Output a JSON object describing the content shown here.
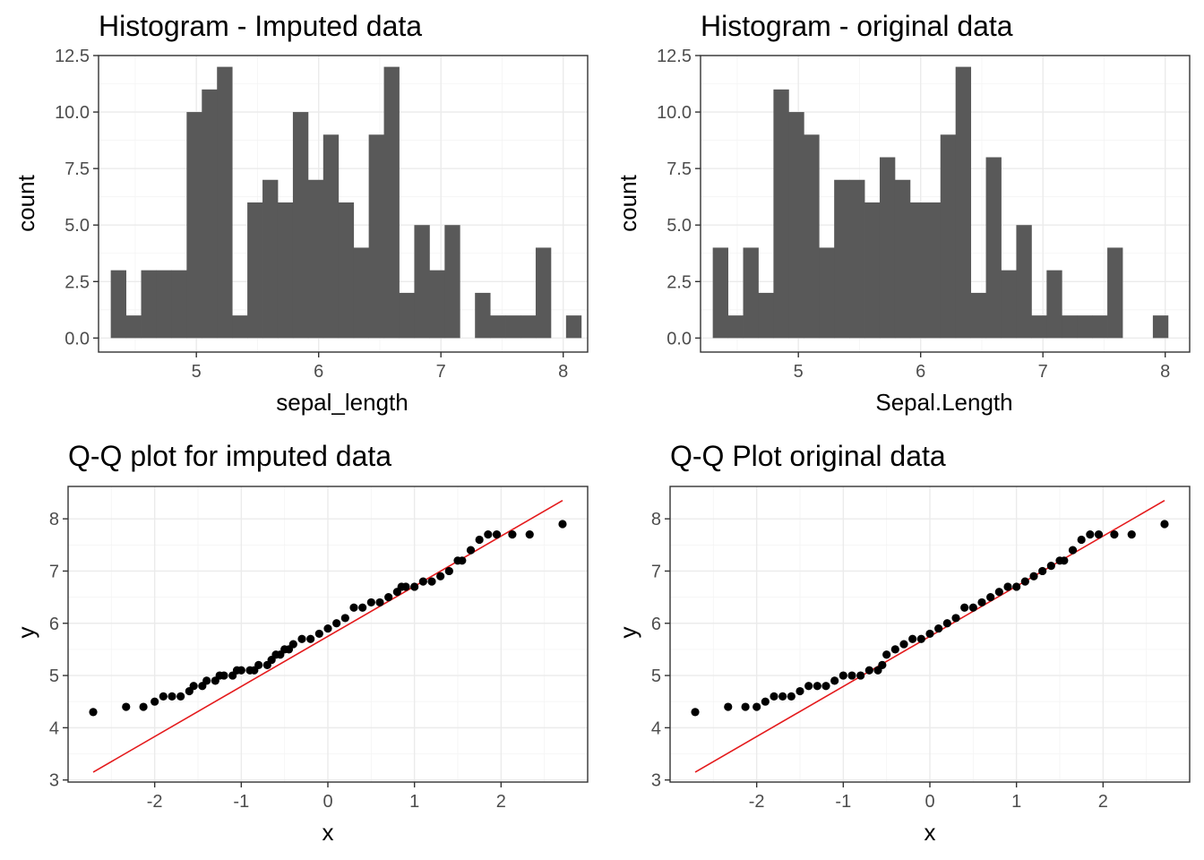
{
  "chart_data": [
    {
      "type": "bar",
      "subtype": "histogram",
      "title": "Histogram - Imputed data",
      "xlabel": "sepal_length",
      "ylabel": "count",
      "xlim": [
        4.2,
        8.2
      ],
      "ylim": [
        -0.62,
        12.5
      ],
      "x_ticks": [
        "5",
        "6",
        "7",
        "8"
      ],
      "y_ticks": [
        "0.0",
        "2.5",
        "5.0",
        "7.5",
        "10.0",
        "12.5"
      ],
      "grid": true,
      "bin_width": 0.1241,
      "bin_start": 4.3,
      "values": [
        3,
        1,
        3,
        3,
        3,
        10,
        11,
        12,
        1,
        6,
        7,
        6,
        10,
        7,
        9,
        6,
        4,
        9,
        12,
        2,
        5,
        3,
        5,
        0,
        2,
        1,
        1,
        1,
        4,
        0,
        1
      ]
    },
    {
      "type": "bar",
      "subtype": "histogram",
      "title": "Histogram - original data",
      "xlabel": "Sepal.Length",
      "ylabel": "count",
      "xlim": [
        4.2,
        8.2
      ],
      "ylim": [
        -0.62,
        12.5
      ],
      "x_ticks": [
        "5",
        "6",
        "7",
        "8"
      ],
      "y_ticks": [
        "0.0",
        "2.5",
        "5.0",
        "7.5",
        "10.0",
        "12.5"
      ],
      "grid": true,
      "bin_width": 0.1241,
      "bin_start": 4.3,
      "values": [
        4,
        1,
        4,
        2,
        11,
        10,
        9,
        4,
        7,
        7,
        6,
        8,
        7,
        6,
        6,
        9,
        12,
        2,
        8,
        3,
        5,
        1,
        3,
        1,
        1,
        1,
        4,
        0,
        0,
        1
      ]
    },
    {
      "type": "scatter",
      "subtype": "qq",
      "title": "Q-Q plot for imputed data",
      "xlabel": "x",
      "ylabel": "y",
      "xlim": [
        -3.0,
        3.0
      ],
      "ylim": [
        2.96,
        8.62
      ],
      "x_ticks": [
        "-2",
        "-1",
        "0",
        "1",
        "2"
      ],
      "y_ticks": [
        "3",
        "4",
        "5",
        "6",
        "7",
        "8"
      ],
      "grid": true,
      "line_color": "#e41a1c",
      "point_color": "#000000",
      "line": {
        "x": [
          -2.71,
          2.71
        ],
        "y": [
          3.15,
          8.35
        ]
      },
      "points": {
        "x": [
          -2.71,
          -2.33,
          -2.13,
          -2.0,
          -1.9,
          -1.8,
          -1.7,
          -1.6,
          -1.55,
          -1.45,
          -1.4,
          -1.3,
          -1.25,
          -1.2,
          -1.1,
          -1.05,
          -1.0,
          -0.9,
          -0.85,
          -0.8,
          -0.7,
          -0.65,
          -0.6,
          -0.55,
          -0.5,
          -0.45,
          -0.4,
          -0.3,
          -0.2,
          -0.1,
          0.0,
          0.1,
          0.2,
          0.3,
          0.4,
          0.5,
          0.6,
          0.7,
          0.8,
          0.85,
          0.9,
          1.0,
          1.1,
          1.2,
          1.3,
          1.4,
          1.5,
          1.55,
          1.65,
          1.75,
          1.85,
          1.95,
          2.13,
          2.33,
          2.71
        ],
        "y": [
          4.3,
          4.4,
          4.4,
          4.5,
          4.6,
          4.6,
          4.6,
          4.7,
          4.8,
          4.8,
          4.9,
          4.9,
          5.0,
          5.0,
          5.0,
          5.1,
          5.1,
          5.1,
          5.1,
          5.2,
          5.2,
          5.3,
          5.4,
          5.4,
          5.5,
          5.5,
          5.6,
          5.7,
          5.7,
          5.8,
          5.9,
          6.0,
          6.1,
          6.3,
          6.3,
          6.4,
          6.4,
          6.5,
          6.6,
          6.7,
          6.7,
          6.7,
          6.8,
          6.8,
          6.9,
          7.0,
          7.2,
          7.2,
          7.4,
          7.6,
          7.7,
          7.7,
          7.7,
          7.7,
          7.9
        ]
      }
    },
    {
      "type": "scatter",
      "subtype": "qq",
      "title": "Q-Q Plot original data",
      "xlabel": "x",
      "ylabel": "y",
      "xlim": [
        -3.0,
        3.0
      ],
      "ylim": [
        2.96,
        8.62
      ],
      "x_ticks": [
        "-2",
        "-1",
        "0",
        "1",
        "2"
      ],
      "y_ticks": [
        "3",
        "4",
        "5",
        "6",
        "7",
        "8"
      ],
      "grid": true,
      "line_color": "#e41a1c",
      "point_color": "#000000",
      "line": {
        "x": [
          -2.71,
          2.71
        ],
        "y": [
          3.15,
          8.35
        ]
      },
      "points": {
        "x": [
          -2.71,
          -2.33,
          -2.13,
          -2.0,
          -1.9,
          -1.8,
          -1.7,
          -1.6,
          -1.5,
          -1.4,
          -1.3,
          -1.2,
          -1.1,
          -1.0,
          -0.9,
          -0.8,
          -0.7,
          -0.6,
          -0.55,
          -0.5,
          -0.4,
          -0.3,
          -0.2,
          -0.1,
          0.0,
          0.1,
          0.2,
          0.3,
          0.4,
          0.5,
          0.6,
          0.7,
          0.8,
          0.9,
          1.0,
          1.1,
          1.2,
          1.3,
          1.4,
          1.5,
          1.55,
          1.65,
          1.75,
          1.85,
          1.95,
          2.13,
          2.33,
          2.71
        ],
        "y": [
          4.3,
          4.4,
          4.4,
          4.4,
          4.5,
          4.6,
          4.6,
          4.6,
          4.7,
          4.8,
          4.8,
          4.8,
          4.9,
          5.0,
          5.0,
          5.0,
          5.1,
          5.1,
          5.2,
          5.4,
          5.5,
          5.6,
          5.7,
          5.7,
          5.8,
          5.9,
          6.0,
          6.1,
          6.3,
          6.3,
          6.4,
          6.5,
          6.6,
          6.7,
          6.7,
          6.8,
          6.9,
          7.0,
          7.1,
          7.2,
          7.2,
          7.4,
          7.6,
          7.7,
          7.7,
          7.7,
          7.7,
          7.9
        ]
      }
    }
  ]
}
